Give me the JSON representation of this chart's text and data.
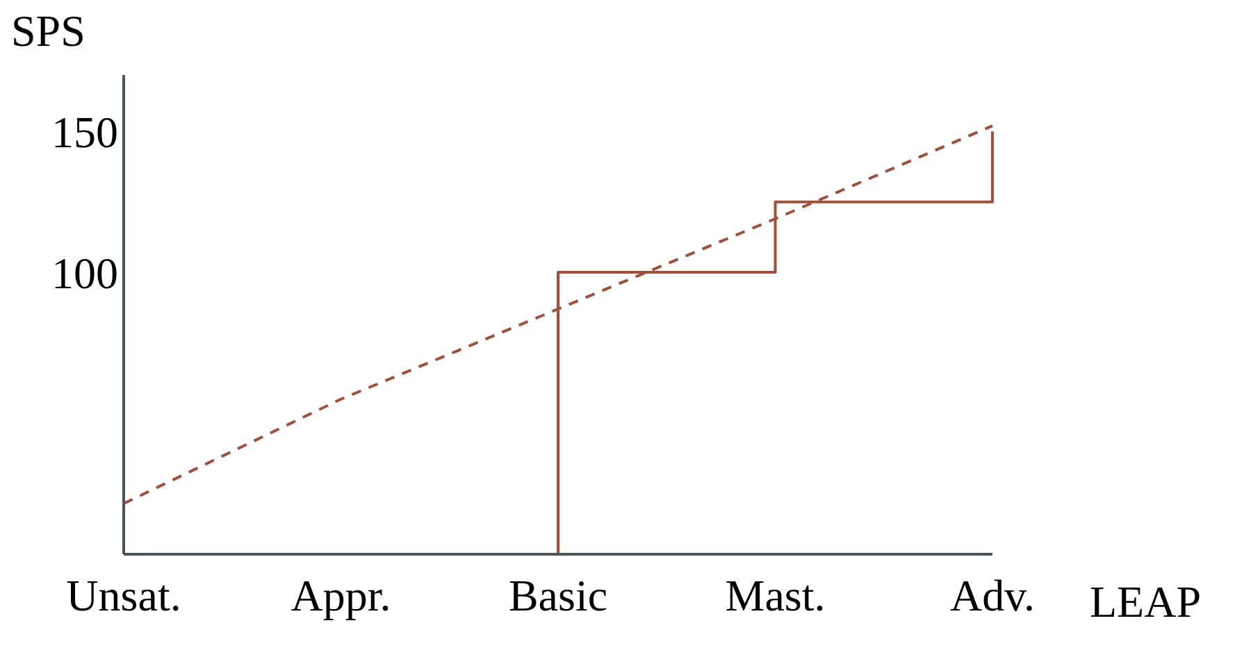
{
  "chart_data": {
    "type": "step",
    "xlabel": "LEAP",
    "ylabel": "SPS",
    "categories": [
      "Unsat.",
      "Appr.",
      "Basic",
      "Mast.",
      "Adv."
    ],
    "series": [
      {
        "type": "step",
        "color": "#a0503a",
        "values": [
          0,
          0,
          100,
          125,
          150
        ],
        "line_style": "solid"
      },
      {
        "type": "line",
        "color": "#a0503a",
        "values": [
          18,
          55,
          87,
          119,
          152
        ],
        "line_style": "dashed"
      }
    ],
    "ylim": [
      0,
      170
    ],
    "yticks": [
      100,
      150
    ],
    "marker": "none"
  }
}
